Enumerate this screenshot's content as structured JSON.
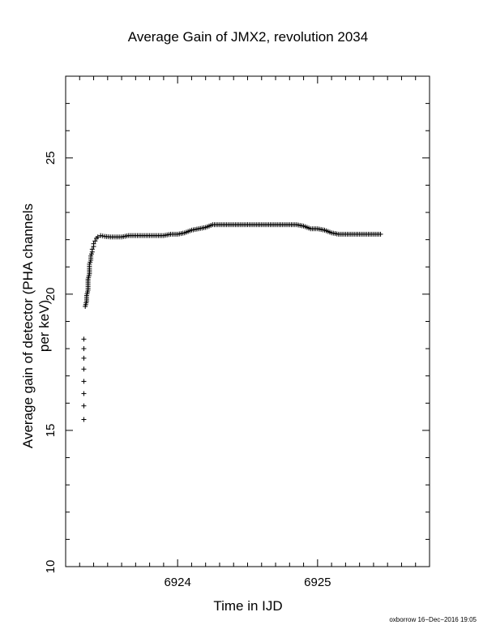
{
  "chart_data": {
    "type": "scatter",
    "title": "Average Gain of JMX2, revolution 2034",
    "xlabel": "Time in IJD",
    "ylabel": "Average gain of detector (PHA channels per keV)",
    "xlim": [
      6923.2,
      6925.8
    ],
    "ylim": [
      10,
      28
    ],
    "x_ticks": [
      6924,
      6925
    ],
    "y_ticks": [
      10,
      15,
      20,
      25
    ],
    "marker": "+",
    "grid": false,
    "series": [
      {
        "x": [
          6923.33,
          6923.33,
          6923.33,
          6923.33,
          6923.33,
          6923.33,
          6923.33,
          6923.33,
          6923.34,
          6923.35,
          6923.35,
          6923.36,
          6923.36,
          6923.36,
          6923.37,
          6923.37,
          6923.37,
          6923.38,
          6923.38,
          6923.39,
          6923.39,
          6923.4,
          6923.4,
          6923.41,
          6923.42,
          6923.43,
          6923.45,
          6923.48,
          6923.52,
          6923.56,
          6923.6,
          6923.65,
          6923.7,
          6923.75,
          6923.8,
          6923.85,
          6923.9,
          6923.95,
          6924.0,
          6924.05,
          6924.1,
          6924.15,
          6924.2,
          6924.25,
          6924.3,
          6924.35,
          6924.4,
          6924.45,
          6924.5,
          6924.55,
          6924.6,
          6924.65,
          6924.7,
          6924.75,
          6924.8,
          6924.85,
          6924.9,
          6924.95,
          6925.0,
          6925.05,
          6925.1,
          6925.15,
          6925.2,
          6925.25,
          6925.3,
          6925.35,
          6925.4,
          6925.45
        ],
        "y": [
          15.4,
          15.9,
          16.35,
          16.8,
          17.25,
          17.65,
          18.0,
          18.35,
          19.55,
          19.75,
          19.95,
          20.15,
          20.35,
          20.55,
          20.75,
          20.95,
          21.1,
          21.25,
          21.4,
          21.55,
          21.65,
          21.75,
          21.85,
          21.95,
          22.05,
          22.1,
          22.15,
          22.12,
          22.1,
          22.1,
          22.1,
          22.15,
          22.15,
          22.15,
          22.15,
          22.15,
          22.15,
          22.2,
          22.2,
          22.25,
          22.35,
          22.4,
          22.45,
          22.55,
          22.55,
          22.55,
          22.55,
          22.55,
          22.55,
          22.55,
          22.55,
          22.55,
          22.55,
          22.55,
          22.55,
          22.55,
          22.5,
          22.4,
          22.4,
          22.35,
          22.25,
          22.2,
          22.2,
          22.2,
          22.2,
          22.2,
          22.2,
          22.2
        ]
      }
    ]
  },
  "footer": {
    "credit": "oxborrow 16−Dec−2016 19:05"
  }
}
